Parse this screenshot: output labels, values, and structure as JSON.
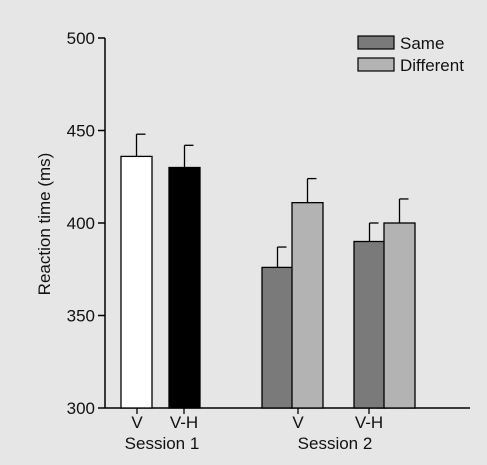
{
  "chart_data": {
    "type": "bar",
    "title": "",
    "xlabel": "",
    "ylabel": "Reaction time (ms)",
    "ylim": [
      300,
      500
    ],
    "yticks": [
      300,
      350,
      400,
      450,
      500
    ],
    "grid": false,
    "legend_position": "top-right",
    "legend": [
      {
        "name": "Same",
        "color": "#7a7a7a"
      },
      {
        "name": "Different",
        "color": "#b3b3b3"
      }
    ],
    "groups": [
      {
        "session": "Session 1",
        "bars": [
          {
            "category": "V",
            "series": "",
            "value": 436,
            "error": 12,
            "color": "#ffffff"
          },
          {
            "category": "V-H",
            "series": "",
            "value": 430,
            "error": 12,
            "color": "#000000"
          }
        ]
      },
      {
        "session": "Session 2",
        "bars": [
          {
            "category": "V",
            "series": "Same",
            "value": 376,
            "error": 11,
            "color": "#7a7a7a"
          },
          {
            "category": "V",
            "series": "Different",
            "value": 411,
            "error": 13,
            "color": "#b3b3b3"
          },
          {
            "category": "V-H",
            "series": "Same",
            "value": 390,
            "error": 10,
            "color": "#7a7a7a"
          },
          {
            "category": "V-H",
            "series": "Different",
            "value": 400,
            "error": 13,
            "color": "#b3b3b3"
          }
        ]
      }
    ],
    "category_labels": [
      {
        "text": "V"
      },
      {
        "text": "V-H"
      },
      {
        "text": "V"
      },
      {
        "text": "V-H"
      }
    ],
    "session_labels": [
      "Session 1",
      "Session 2"
    ]
  }
}
